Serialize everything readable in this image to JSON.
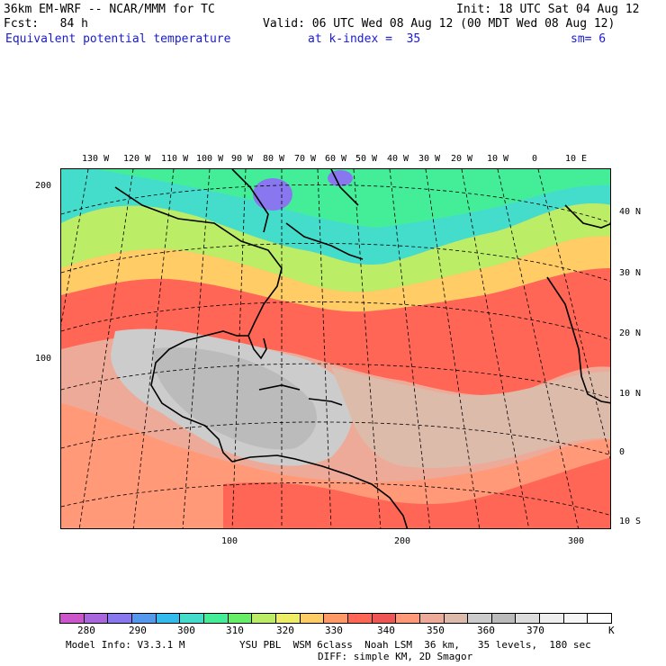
{
  "header": {
    "model_line": "36km EM-WRF -- NCAR/MMM for TC",
    "forecast_line": "Fcst:   84 h",
    "init_line": "Init: 18 UTC Sat 04 Aug 12",
    "valid_line": "Valid: 06 UTC Wed 08 Aug 12 (00 MDT Wed 08 Aug 12)",
    "field_name": "Equivalent potential temperature",
    "level": "at k-index =  35",
    "smoothing": "sm= 6"
  },
  "map": {
    "top_lon_labels": [
      "130 W",
      "120 W",
      "110 W",
      "100 W",
      "90 W",
      "80 W",
      "70 W",
      "60 W",
      "50 W",
      "40 W",
      "30 W",
      "20 W",
      "10 W",
      "0",
      "10 E"
    ],
    "right_lat_labels": [
      "40 N",
      "30 N",
      "20 N",
      "10 N",
      "0",
      "10 S"
    ],
    "left_grid_labels": [
      "200",
      "100"
    ],
    "bottom_grid_labels": [
      "100",
      "200",
      "300"
    ]
  },
  "colorbar": {
    "labels": [
      "280",
      "290",
      "300",
      "310",
      "320",
      "330",
      "340",
      "350",
      "360",
      "370"
    ],
    "unit": "K",
    "colors": [
      "#cc55cc",
      "#aa66dd",
      "#8877ee",
      "#5599ee",
      "#33bbee",
      "#44ddcc",
      "#44ee99",
      "#66ee66",
      "#bbee66",
      "#eeee66",
      "#ffcc66",
      "#ff9966",
      "#ff6655",
      "#ee5555",
      "#ff9977",
      "#eeaa99",
      "#ddbbaa",
      "#cccccc",
      "#bbbbbb",
      "#dddddd",
      "#eeeeee",
      "#f6f6f6",
      "#ffffff"
    ]
  },
  "footer": {
    "model_info": "Model Info: V3.3.1 M",
    "physics": "YSU PBL  WSM 6class  Noah LSM  36 km,   35 levels,  180 sec",
    "diffusion": "DIFF: simple KM, 2D Smagor"
  }
}
